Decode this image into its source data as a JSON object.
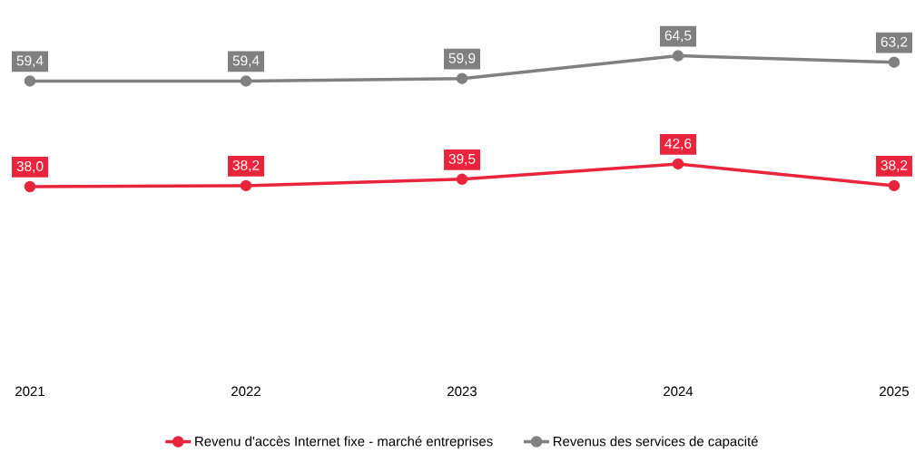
{
  "chart_data": {
    "type": "line",
    "categories": [
      "2021",
      "2022",
      "2023",
      "2024",
      "2025"
    ],
    "series": [
      {
        "name": "Revenu d'accès Internet fixe - marché entreprises",
        "color": "#e8253c",
        "values": [
          38.0,
          38.2,
          39.5,
          42.6,
          38.2
        ],
        "value_labels": [
          "38,0",
          "38,2",
          "39,5",
          "42,6",
          "38,2"
        ]
      },
      {
        "name": "Revenus des services de capacité",
        "color": "#808080",
        "values": [
          59.4,
          59.4,
          59.9,
          64.5,
          63.2
        ],
        "value_labels": [
          "59,4",
          "59,4",
          "59,9",
          "64,5",
          "63,2"
        ]
      }
    ],
    "legend": "bottom",
    "marker": "circle",
    "line_style": "solid",
    "grid": false
  }
}
